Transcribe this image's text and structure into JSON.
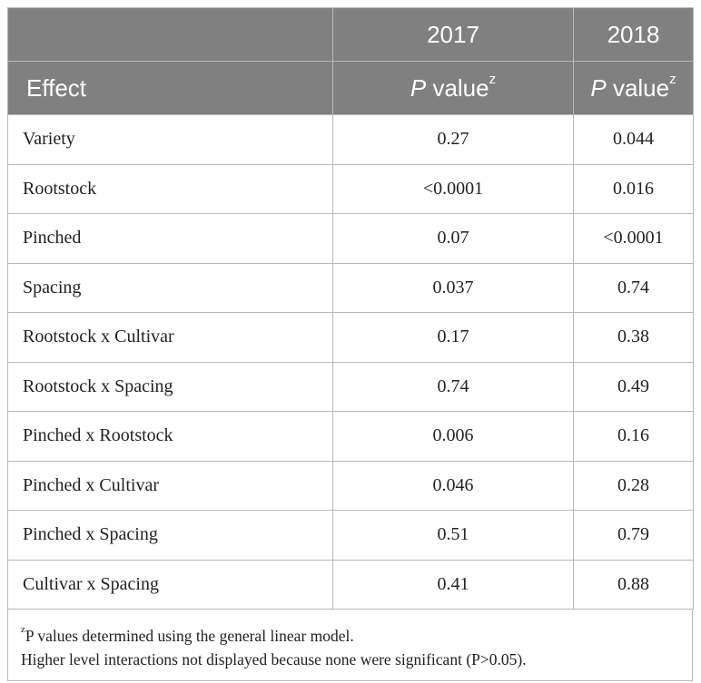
{
  "header": {
    "year1": "2017",
    "year2": "2018",
    "effect_label": "Effect",
    "p_italic": "P",
    "value_text": " value",
    "superscript": "z"
  },
  "rows": [
    {
      "effect": "Variety",
      "y2017": "0.27",
      "y2018": "0.044"
    },
    {
      "effect": "Rootstock",
      "y2017": "<0.0001",
      "y2018": "0.016"
    },
    {
      "effect": "Pinched",
      "y2017": "0.07",
      "y2018": "<0.0001"
    },
    {
      "effect": "Spacing",
      "y2017": "0.037",
      "y2018": "0.74"
    },
    {
      "effect": "Rootstock x Cultivar",
      "y2017": "0.17",
      "y2018": "0.38"
    },
    {
      "effect": "Rootstock x Spacing",
      "y2017": "0.74",
      "y2018": "0.49"
    },
    {
      "effect": "Pinched x Rootstock",
      "y2017": "0.006",
      "y2018": "0.16"
    },
    {
      "effect": "Pinched x Cultivar",
      "y2017": "0.046",
      "y2018": "0.28"
    },
    {
      "effect": "Pinched x Spacing",
      "y2017": "0.51",
      "y2018": "0.79"
    },
    {
      "effect": "Cultivar x Spacing",
      "y2017": "0.41",
      "y2018": "0.88"
    }
  ],
  "footnotes": {
    "line1_sup": "z",
    "line1": "P values determined using the general linear model.",
    "line2": "Higher level interactions not displayed because none were significant (P>0.05)."
  },
  "colors": {
    "header_bg": "#818080",
    "header_text": "#ffffff",
    "border": "#b9b9b9"
  }
}
